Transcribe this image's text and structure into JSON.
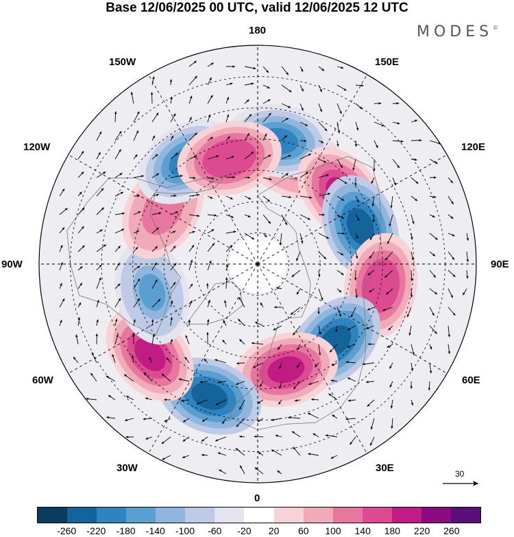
{
  "title": "Base 12/06/2025 00 UTC, valid 12/06/2025 12 UTC",
  "brand": "MODES",
  "brand_mark": "©",
  "longitude_labels": {
    "top": "180",
    "bottom": "0",
    "left": "90W",
    "right": "90E",
    "upper_left_1": "150W",
    "upper_left_2": "120W",
    "upper_right_1": "150E",
    "upper_right_2": "120E",
    "lower_left_1": "60W",
    "lower_left_2": "30W",
    "lower_right_1": "60E",
    "lower_right_2": "30E"
  },
  "reference_vector": {
    "value": "30",
    "icon": "arrow-right-icon"
  },
  "colorbar": {
    "colors": [
      "#0b3c5d",
      "#14639a",
      "#2f83bf",
      "#5b9fd0",
      "#8fb7de",
      "#bfcbe6",
      "#e4e4f1",
      "#ffffff",
      "#f7d3d8",
      "#f0aab8",
      "#e7779e",
      "#dc4a92",
      "#c01c83",
      "#8c0a80",
      "#5a0f78"
    ],
    "tick_labels": [
      "-260",
      "-220",
      "-180",
      "-140",
      "-100",
      "-60",
      "-20",
      "20",
      "60",
      "100",
      "140",
      "180",
      "220",
      "260"
    ]
  },
  "map": {
    "projection": "north-polar-stereographic",
    "graticule": "dashed",
    "anomaly_centers": [
      {
        "lon_deg": 160,
        "lat_deg": 55,
        "value": 140
      },
      {
        "lon_deg": 170,
        "lat_deg": 50,
        "value": -180
      },
      {
        "lon_deg": 130,
        "lat_deg": 55,
        "value": 220
      },
      {
        "lon_deg": 110,
        "lat_deg": 55,
        "value": -220
      },
      {
        "lon_deg": 80,
        "lat_deg": 50,
        "value": 180
      },
      {
        "lon_deg": 45,
        "lat_deg": 55,
        "value": -220
      },
      {
        "lon_deg": 15,
        "lat_deg": 55,
        "value": 220
      },
      {
        "lon_deg": -20,
        "lat_deg": 45,
        "value": -220
      },
      {
        "lon_deg": -50,
        "lat_deg": 45,
        "value": 220
      },
      {
        "lon_deg": -75,
        "lat_deg": 55,
        "value": -140
      },
      {
        "lon_deg": -120,
        "lat_deg": 55,
        "value": 140
      },
      {
        "lon_deg": -145,
        "lat_deg": 50,
        "value": -180
      },
      {
        "lon_deg": -165,
        "lat_deg": 55,
        "value": 180
      }
    ]
  }
}
